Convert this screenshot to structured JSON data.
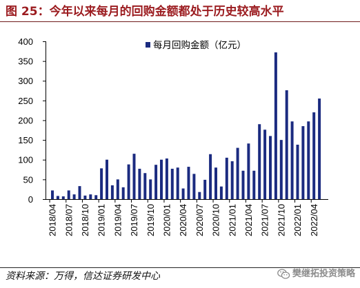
{
  "chart_data": {
    "type": "bar",
    "title": "图 25：今年以来每月的回购金额都处于历史较高水平",
    "xlabel": "",
    "ylabel": "",
    "ylim": [
      0,
      400
    ],
    "yticks": [
      0,
      50,
      100,
      150,
      200,
      250,
      300,
      350,
      400
    ],
    "grid": false,
    "legend": "top-center",
    "categories": [
      "2018/04",
      "2018/05",
      "2018/06",
      "2018/07",
      "2018/08",
      "2018/09",
      "2018/10",
      "2018/11",
      "2018/12",
      "2019/01",
      "2019/02",
      "2019/03",
      "2019/04",
      "2019/05",
      "2019/06",
      "2019/07",
      "2019/08",
      "2019/09",
      "2019/10",
      "2019/11",
      "2019/12",
      "2020/01",
      "2020/02",
      "2020/03",
      "2020/04",
      "2020/05",
      "2020/06",
      "2020/07",
      "2020/08",
      "2020/09",
      "2020/10",
      "2020/11",
      "2020/12",
      "2021/01",
      "2021/02",
      "2021/03",
      "2021/04",
      "2021/05",
      "2021/06",
      "2021/07",
      "2021/08",
      "2021/09",
      "2021/10",
      "2021/11",
      "2021/12",
      "2022/01",
      "2022/02",
      "2022/03",
      "2022/04",
      "2022/05"
    ],
    "series": [
      {
        "name": "每月回购金额（亿元）",
        "values": [
          22,
          8,
          7,
          22,
          12,
          33,
          9,
          12,
          10,
          78,
          100,
          35,
          50,
          30,
          88,
          115,
          77,
          66,
          50,
          87,
          100,
          103,
          77,
          80,
          27,
          82,
          64,
          18,
          49,
          114,
          80,
          32,
          105,
          96,
          130,
          72,
          141,
          72,
          190,
          176,
          160,
          372,
          150,
          276,
          197,
          138,
          185,
          197,
          220,
          255
        ]
      }
    ]
  },
  "figure": {
    "source": "资料来源：万得，信达证券研发中心"
  },
  "watermark": {
    "icon": "wechat-icon",
    "text": "樊继拓投资策略"
  },
  "colors": {
    "caption": "#9b1b1f",
    "bar": "#1b2b80",
    "watermark": "#8c8c8c"
  }
}
